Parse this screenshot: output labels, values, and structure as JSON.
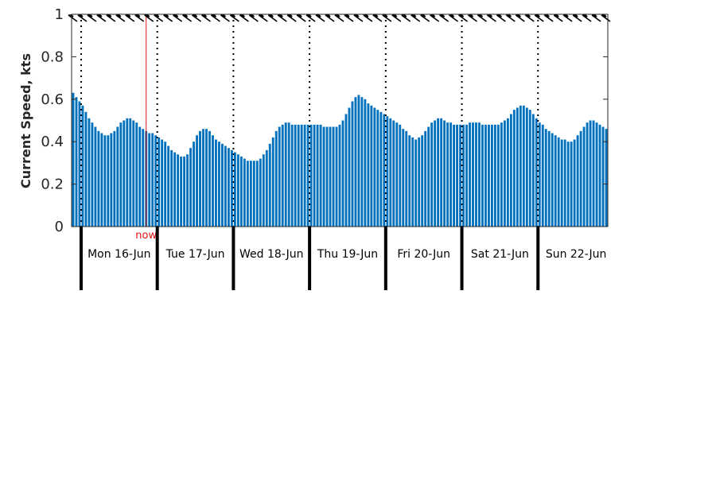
{
  "chart_data": {
    "type": "bar",
    "ylabel": "Current Speed, kts",
    "ylim": [
      0,
      1
    ],
    "yticks": [
      "0",
      "0.2",
      "0.4",
      "0.6",
      "0.8",
      "1"
    ],
    "x_start": "2025-06-15 21:00",
    "x_step_hours": 1,
    "grid": "vertical-dotted-at-midnight",
    "days": [
      "Mon 16-Jun",
      "Tue 17-Jun",
      "Wed 18-Jun",
      "Thu 19-Jun",
      "Fri 20-Jun",
      "Sat 21-Jun",
      "Sun 22-Jun"
    ],
    "now_label": "now",
    "now_time": "2025-06-16 20:30",
    "series": [
      {
        "values": [
          0.63,
          0.61,
          0.59,
          0.57,
          0.54,
          0.51,
          0.49,
          0.47,
          0.45,
          0.44,
          0.43,
          0.43,
          0.44,
          0.45,
          0.47,
          0.49,
          0.5,
          0.51,
          0.51,
          0.5,
          0.49,
          0.47,
          0.46,
          0.45,
          0.44,
          0.44,
          0.43,
          0.42,
          0.41,
          0.4,
          0.38,
          0.36,
          0.35,
          0.34,
          0.33,
          0.33,
          0.34,
          0.37,
          0.4,
          0.43,
          0.45,
          0.46,
          0.46,
          0.45,
          0.43,
          0.41,
          0.4,
          0.39,
          0.38,
          0.37,
          0.36,
          0.35,
          0.34,
          0.33,
          0.32,
          0.31,
          0.31,
          0.31,
          0.31,
          0.32,
          0.34,
          0.36,
          0.39,
          0.42,
          0.45,
          0.47,
          0.48,
          0.49,
          0.49,
          0.48,
          0.48,
          0.48,
          0.48,
          0.48,
          0.48,
          0.48,
          0.48,
          0.48,
          0.48,
          0.47,
          0.47,
          0.47,
          0.47,
          0.47,
          0.48,
          0.5,
          0.53,
          0.56,
          0.59,
          0.61,
          0.62,
          0.61,
          0.6,
          0.58,
          0.57,
          0.56,
          0.55,
          0.54,
          0.53,
          0.52,
          0.51,
          0.5,
          0.49,
          0.48,
          0.46,
          0.45,
          0.43,
          0.42,
          0.41,
          0.42,
          0.43,
          0.45,
          0.47,
          0.49,
          0.5,
          0.51,
          0.51,
          0.5,
          0.49,
          0.49,
          0.48,
          0.48,
          0.48,
          0.48,
          0.48,
          0.49,
          0.49,
          0.49,
          0.49,
          0.48,
          0.48,
          0.48,
          0.48,
          0.48,
          0.48,
          0.49,
          0.5,
          0.51,
          0.53,
          0.55,
          0.56,
          0.57,
          0.57,
          0.56,
          0.55,
          0.53,
          0.51,
          0.49,
          0.48,
          0.46,
          0.45,
          0.44,
          0.43,
          0.42,
          0.41,
          0.41,
          0.4,
          0.4,
          0.41,
          0.43,
          0.45,
          0.47,
          0.49,
          0.5,
          0.5,
          0.49,
          0.48,
          0.47,
          0.46
        ]
      }
    ],
    "colors": {
      "bar": "#0072bd",
      "now": "#e01414",
      "axis": "#262626",
      "grid": "#000000",
      "arrow": "#000000"
    },
    "direction_arrow_icon": "current-direction-arrow-icon"
  }
}
